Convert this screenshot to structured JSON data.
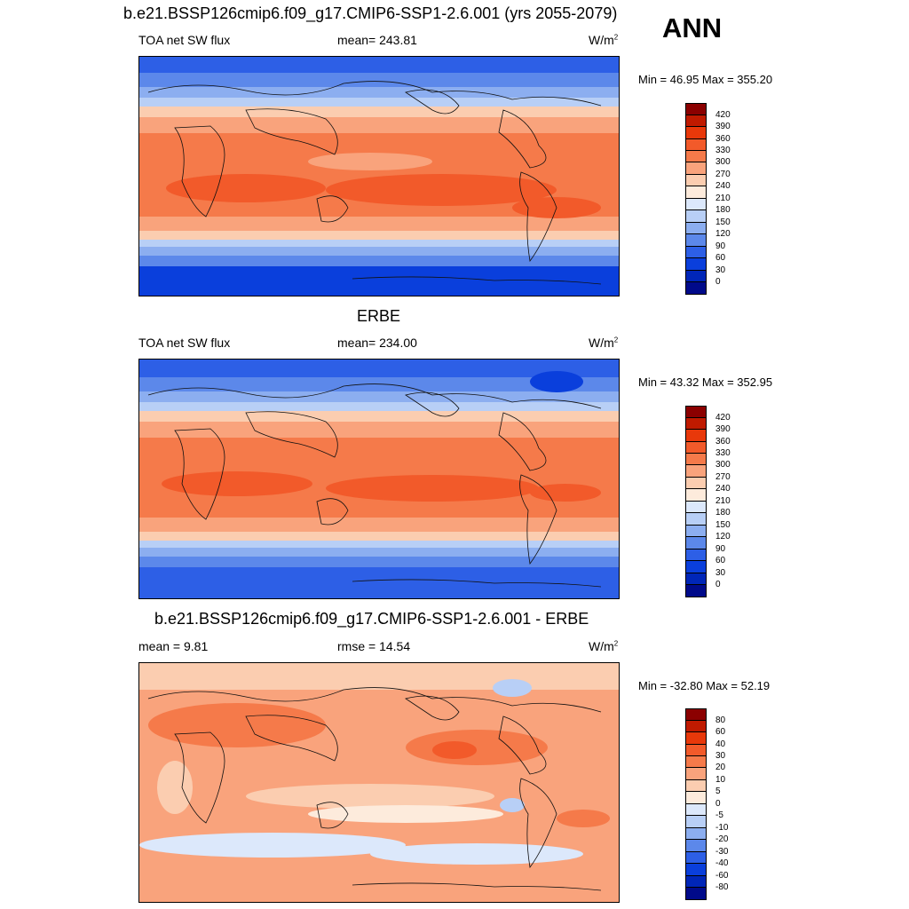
{
  "season": "ANN",
  "panels": [
    {
      "title": "b.e21.BSSP126cmip6.f09_g17.CMIP6-SSP1-2.6.001 (yrs 2055-2079)",
      "left_label": "TOA net SW flux",
      "center_label": "mean= 243.81",
      "units": "W/m",
      "units_exp": "2",
      "minmax": "Min =  46.95 Max = 355.20",
      "colorbar_labels": [
        "420",
        "390",
        "360",
        "330",
        "300",
        "270",
        "240",
        "210",
        "180",
        "150",
        "120",
        "90",
        "60",
        "30",
        "0"
      ]
    },
    {
      "title": "ERBE",
      "left_label": "TOA net SW flux",
      "center_label": "mean= 234.00",
      "units": "W/m",
      "units_exp": "2",
      "minmax": "Min =  43.32 Max = 352.95",
      "colorbar_labels": [
        "420",
        "390",
        "360",
        "330",
        "300",
        "270",
        "240",
        "210",
        "180",
        "150",
        "120",
        "90",
        "60",
        "30",
        "0"
      ]
    },
    {
      "title": "b.e21.BSSP126cmip6.f09_g17.CMIP6-SSP1-2.6.001 - ERBE",
      "left_label": "mean =   9.81",
      "center_label": "rmse =  14.54",
      "units": "W/m",
      "units_exp": "2",
      "minmax": "Min = -32.80 Max =  52.19",
      "colorbar_labels": [
        "80",
        "60",
        "40",
        "30",
        "20",
        "10",
        "5",
        "0",
        "-5",
        "-10",
        "-20",
        "-30",
        "-40",
        "-60",
        "-80"
      ]
    }
  ],
  "colorbar_colors": [
    "#8b0000",
    "#c01a00",
    "#e8380a",
    "#f25a2a",
    "#f57a4a",
    "#f9a37c",
    "#fbcdb0",
    "#fdebdc",
    "#dce8fb",
    "#b8cff6",
    "#8caef0",
    "#5c88ea",
    "#2d5fe6",
    "#0a3fdc",
    "#0026b8",
    "#000a8a"
  ]
}
